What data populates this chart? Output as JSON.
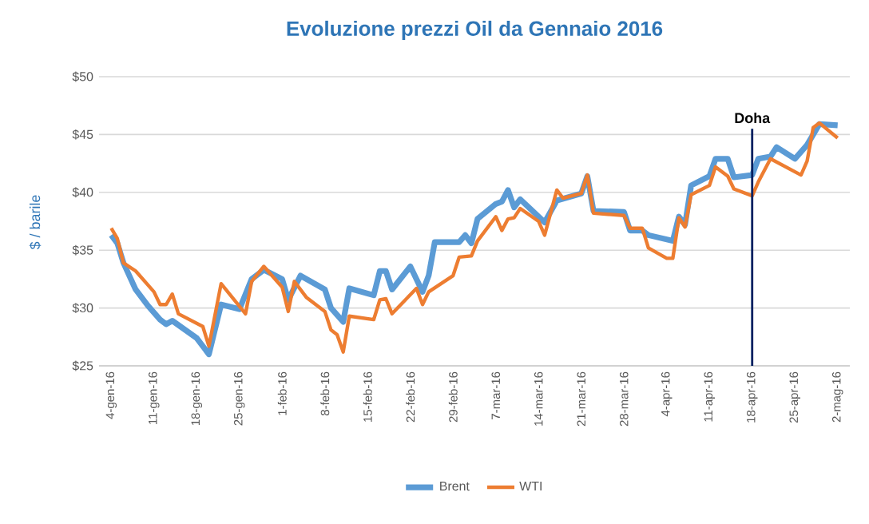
{
  "chart_data": {
    "type": "line",
    "title": "Evoluzione prezzi Oil da Gennaio 2016",
    "ylabel": "$ / barile",
    "xlim": [
      "2016-01-02",
      "2016-05-04"
    ],
    "xticks": [
      {
        "value": "2016-01-04",
        "label": "4-gen-16"
      },
      {
        "value": "2016-01-11",
        "label": "11-gen-16"
      },
      {
        "value": "2016-01-18",
        "label": "18-gen-16"
      },
      {
        "value": "2016-01-25",
        "label": "25-gen-16"
      },
      {
        "value": "2016-02-01",
        "label": "1-feb-16"
      },
      {
        "value": "2016-02-08",
        "label": "8-feb-16"
      },
      {
        "value": "2016-02-15",
        "label": "15-feb-16"
      },
      {
        "value": "2016-02-22",
        "label": "22-feb-16"
      },
      {
        "value": "2016-02-29",
        "label": "29-feb-16"
      },
      {
        "value": "2016-03-07",
        "label": "7-mar-16"
      },
      {
        "value": "2016-03-14",
        "label": "14-mar-16"
      },
      {
        "value": "2016-03-21",
        "label": "21-mar-16"
      },
      {
        "value": "2016-03-28",
        "label": "28-mar-16"
      },
      {
        "value": "2016-04-04",
        "label": "4-apr-16"
      },
      {
        "value": "2016-04-11",
        "label": "11-apr-16"
      },
      {
        "value": "2016-04-18",
        "label": "18-apr-16"
      },
      {
        "value": "2016-04-25",
        "label": "25-apr-16"
      },
      {
        "value": "2016-05-02",
        "label": "2-mag-16"
      }
    ],
    "ylim": [
      25,
      50
    ],
    "yticks": [
      {
        "value": 25,
        "label": "$25"
      },
      {
        "value": 30,
        "label": "$30"
      },
      {
        "value": 35,
        "label": "$35"
      },
      {
        "value": 40,
        "label": "$40"
      },
      {
        "value": 45,
        "label": "$45"
      },
      {
        "value": 50,
        "label": "$50"
      }
    ],
    "grid": "y",
    "legend": "bottom",
    "marker": "none",
    "line_style": "solid",
    "ref_lines": [
      {
        "axis": "x",
        "value": "2016-04-18",
        "label": "Doha",
        "color": "#002060"
      }
    ],
    "series": [
      {
        "name": "Brent",
        "color": "#5b9bd5",
        "x": [
          "2016-01-04",
          "2016-01-05",
          "2016-01-06",
          "2016-01-08",
          "2016-01-10",
          "2016-01-12",
          "2016-01-13",
          "2016-01-14",
          "2016-01-18",
          "2016-01-20",
          "2016-01-22",
          "2016-01-25",
          "2016-01-27",
          "2016-01-29",
          "2016-02-01",
          "2016-02-02",
          "2016-02-04",
          "2016-02-08",
          "2016-02-09",
          "2016-02-11",
          "2016-02-12",
          "2016-02-16",
          "2016-02-17",
          "2016-02-18",
          "2016-02-19",
          "2016-02-22",
          "2016-02-24",
          "2016-02-25",
          "2016-02-26",
          "2016-03-01",
          "2016-03-02",
          "2016-03-03",
          "2016-03-04",
          "2016-03-07",
          "2016-03-08",
          "2016-03-09",
          "2016-03-10",
          "2016-03-11",
          "2016-03-15",
          "2016-03-17",
          "2016-03-21",
          "2016-03-22",
          "2016-03-23",
          "2016-03-28",
          "2016-03-29",
          "2016-03-31",
          "2016-04-01",
          "2016-04-05",
          "2016-04-06",
          "2016-04-07",
          "2016-04-08",
          "2016-04-11",
          "2016-04-12",
          "2016-04-14",
          "2016-04-15",
          "2016-04-18",
          "2016-04-19",
          "2016-04-21",
          "2016-04-22",
          "2016-04-25",
          "2016-04-27",
          "2016-04-29",
          "2016-05-02"
        ],
        "values": [
          36.3,
          35.6,
          33.9,
          31.6,
          30.2,
          29.0,
          28.6,
          28.9,
          27.4,
          26.0,
          30.3,
          29.9,
          32.5,
          33.3,
          32.5,
          30.7,
          32.8,
          31.6,
          30.0,
          28.8,
          31.7,
          31.1,
          33.2,
          33.2,
          31.6,
          33.6,
          31.4,
          32.8,
          35.7,
          35.7,
          36.3,
          35.6,
          37.7,
          39.0,
          39.2,
          40.2,
          38.7,
          39.4,
          37.4,
          39.3,
          39.9,
          41.4,
          38.4,
          38.3,
          36.7,
          36.7,
          36.3,
          35.8,
          37.9,
          37.2,
          40.6,
          41.4,
          42.9,
          42.9,
          41.3,
          41.5,
          42.9,
          43.1,
          43.9,
          42.9,
          44.1,
          45.9,
          45.8
        ]
      },
      {
        "name": "WTI",
        "color": "#ed7d31",
        "x": [
          "2016-01-04",
          "2016-01-05",
          "2016-01-06",
          "2016-01-08",
          "2016-01-11",
          "2016-01-12",
          "2016-01-13",
          "2016-01-14",
          "2016-01-15",
          "2016-01-19",
          "2016-01-20",
          "2016-01-22",
          "2016-01-26",
          "2016-01-27",
          "2016-01-29",
          "2016-02-01",
          "2016-02-02",
          "2016-02-03",
          "2016-02-05",
          "2016-02-08",
          "2016-02-09",
          "2016-02-10",
          "2016-02-11",
          "2016-02-12",
          "2016-02-16",
          "2016-02-17",
          "2016-02-18",
          "2016-02-19",
          "2016-02-23",
          "2016-02-24",
          "2016-02-25",
          "2016-02-29",
          "2016-03-01",
          "2016-03-03",
          "2016-03-04",
          "2016-03-07",
          "2016-03-08",
          "2016-03-09",
          "2016-03-10",
          "2016-03-11",
          "2016-03-14",
          "2016-03-15",
          "2016-03-17",
          "2016-03-18",
          "2016-03-21",
          "2016-03-22",
          "2016-03-23",
          "2016-03-28",
          "2016-03-29",
          "2016-03-31",
          "2016-04-01",
          "2016-04-04",
          "2016-04-05",
          "2016-04-06",
          "2016-04-07",
          "2016-04-08",
          "2016-04-11",
          "2016-04-12",
          "2016-04-14",
          "2016-04-15",
          "2016-04-18",
          "2016-04-19",
          "2016-04-21",
          "2016-04-26",
          "2016-04-27",
          "2016-04-28",
          "2016-04-29",
          "2016-05-02"
        ],
        "values": [
          36.9,
          36.0,
          33.9,
          33.2,
          31.4,
          30.3,
          30.3,
          31.2,
          29.5,
          28.4,
          26.7,
          32.1,
          29.5,
          32.3,
          33.6,
          31.8,
          29.7,
          32.3,
          30.9,
          29.7,
          28.1,
          27.7,
          26.2,
          29.3,
          29.0,
          30.7,
          30.8,
          29.5,
          31.7,
          30.3,
          31.4,
          32.8,
          34.4,
          34.5,
          35.8,
          37.9,
          36.7,
          37.7,
          37.8,
          38.6,
          37.5,
          36.3,
          40.2,
          39.5,
          39.9,
          41.5,
          38.2,
          38.0,
          36.9,
          36.9,
          35.2,
          34.3,
          34.3,
          37.8,
          37.0,
          39.8,
          40.6,
          42.2,
          41.4,
          40.3,
          39.7,
          40.9,
          42.9,
          41.5,
          42.7,
          45.6,
          46.0,
          44.7
        ]
      }
    ]
  }
}
